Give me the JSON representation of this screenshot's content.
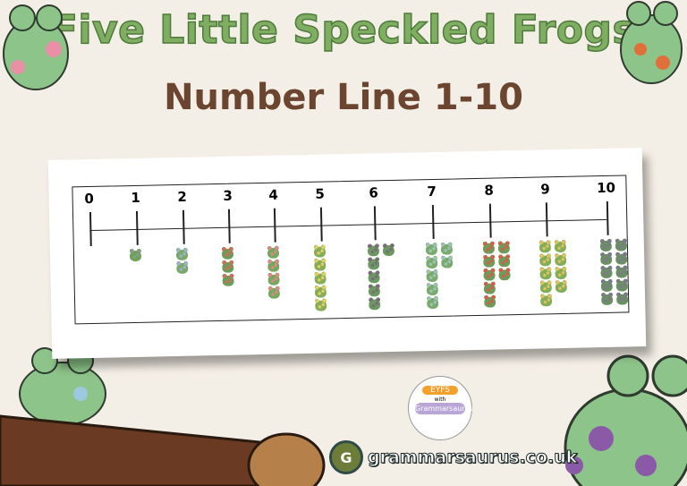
{
  "title": "Five Little Speckled Frogs",
  "subtitle": "Number Line 1-10",
  "number_line": {
    "labels": [
      "0",
      "1",
      "2",
      "3",
      "4",
      "5",
      "6",
      "7",
      "8",
      "9",
      "10"
    ],
    "frog_counts": [
      0,
      1,
      2,
      3,
      4,
      5,
      6,
      7,
      8,
      9,
      10
    ],
    "frog_colors": [
      "#6fa35a",
      "#7aa86a",
      "#6b9c58",
      "#73a85e",
      "#85ad5a",
      "#6a9a5f",
      "#79ab6d",
      "#6d9b58",
      "#82ae58",
      "#6a8f62"
    ],
    "spot_colors": [
      "#8a9a8f",
      "#9ab3c8",
      "#d56a5a",
      "#e08888",
      "#e0d060",
      "#7a6a7a",
      "#a0c0b8",
      "#d85a4a",
      "#e0c060",
      "#7a7a8a"
    ]
  },
  "badge": {
    "top": "EYFS",
    "middle": "with",
    "bottom": "Grammarsaurus"
  },
  "logo": {
    "letter": "G",
    "text": "grammarsaurus.co.uk"
  }
}
